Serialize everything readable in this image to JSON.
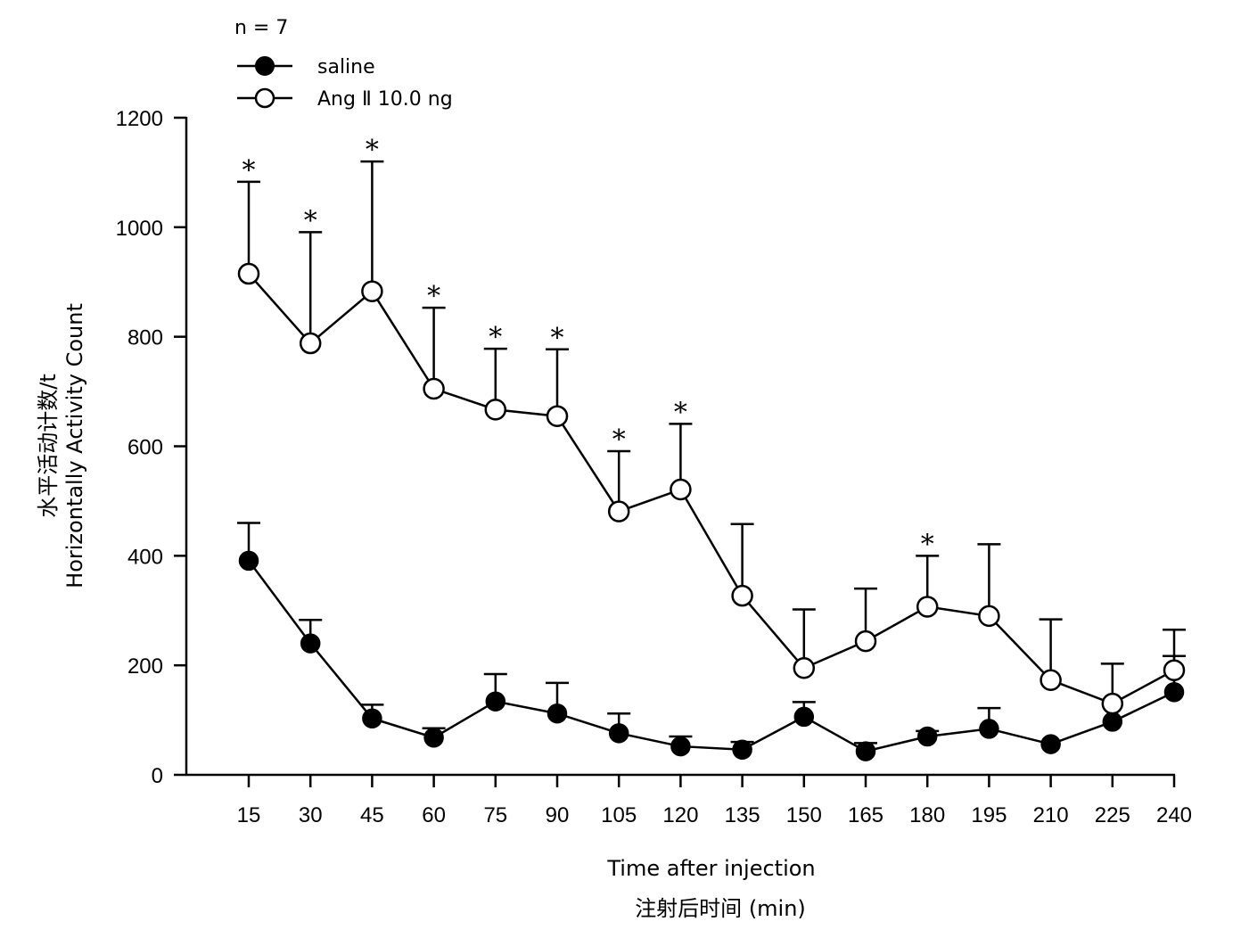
{
  "chart_data": {
    "type": "line",
    "annotation": "n = 7",
    "xlabel": "Time after injection",
    "xlabel_line2": "注射后时间 (min)",
    "ylabel": "水平活动计数/t",
    "ylabel_line2": "Horizontally Activity Count",
    "x": [
      15,
      30,
      45,
      60,
      75,
      90,
      105,
      120,
      135,
      150,
      165,
      180,
      195,
      210,
      225,
      240
    ],
    "x_tick_labels": [
      "15",
      "30",
      "45",
      "60",
      "75",
      "90",
      "105",
      "120",
      "135",
      "150",
      "165",
      "180",
      "195",
      "210",
      "225",
      "240"
    ],
    "ylim": [
      0,
      1200
    ],
    "y_ticks": [
      0,
      200,
      400,
      600,
      800,
      1000,
      1200
    ],
    "y_tick_labels": [
      "0",
      "200",
      "400",
      "600",
      "800",
      "1000",
      "1200"
    ],
    "grid": false,
    "legend_position": "top-left",
    "significance_marker": "*",
    "series": [
      {
        "name": "saline",
        "marker": "filled-circle",
        "color": "#000000",
        "values": [
          391,
          240,
          103,
          68,
          134,
          112,
          76,
          52,
          46,
          106,
          43,
          70,
          84,
          56,
          97,
          151
        ],
        "error_upper": [
          460,
          283,
          128,
          85,
          184,
          168,
          112,
          70,
          60,
          133,
          58,
          80,
          122,
          56,
          97,
          217
        ]
      },
      {
        "name": "Ang Ⅱ 10.0 ng",
        "marker": "open-circle",
        "color": "#000000",
        "values": [
          915,
          788,
          883,
          705,
          667,
          655,
          481,
          521,
          327,
          195,
          244,
          307,
          290,
          173,
          130,
          191
        ],
        "error_upper": [
          1083,
          991,
          1120,
          853,
          778,
          777,
          591,
          641,
          458,
          302,
          340,
          400,
          421,
          284,
          203,
          265
        ],
        "significant": [
          true,
          true,
          true,
          true,
          true,
          true,
          true,
          true,
          false,
          false,
          false,
          true,
          false,
          false,
          false,
          false
        ]
      }
    ]
  }
}
